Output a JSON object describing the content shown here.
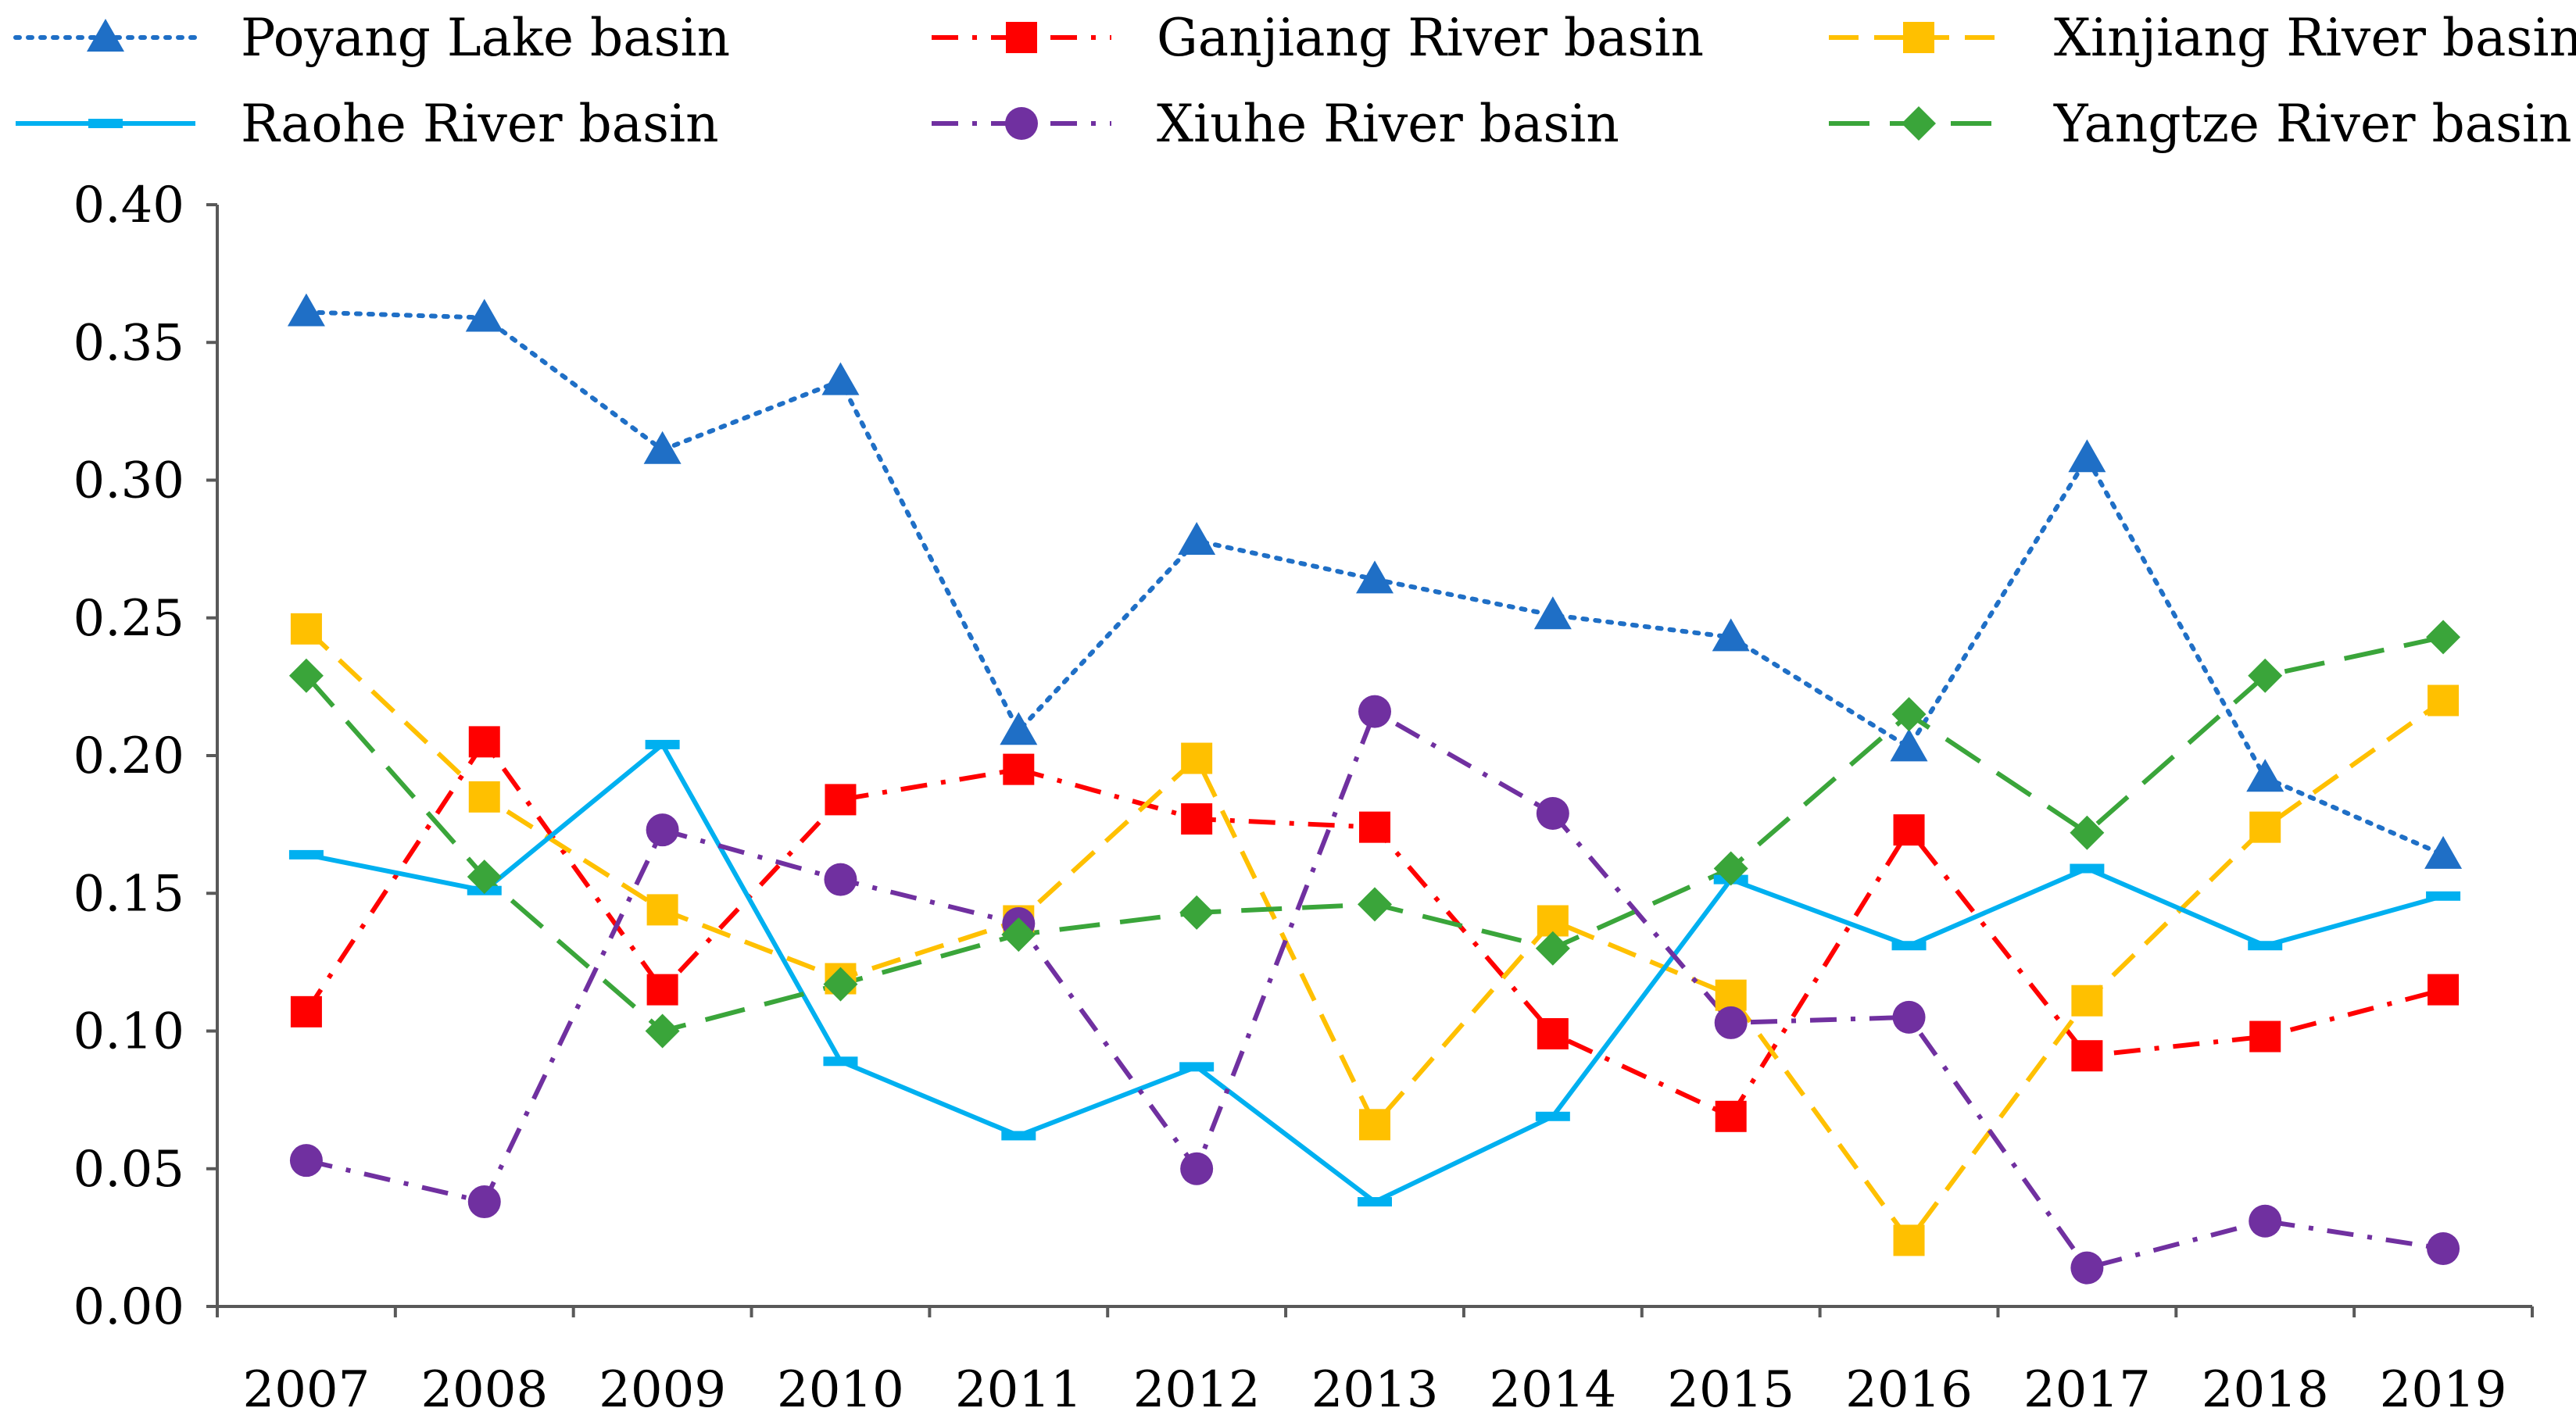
{
  "chart_data": {
    "type": "line",
    "title": "",
    "xlabel": "",
    "ylabel": "",
    "categories": [
      "2007",
      "2008",
      "2009",
      "2010",
      "2011",
      "2012",
      "2013",
      "2014",
      "2015",
      "2016",
      "2017",
      "2018",
      "2019"
    ],
    "ylim": [
      0,
      0.4
    ],
    "yticks": [
      "0.00",
      "0.05",
      "0.10",
      "0.15",
      "0.20",
      "0.25",
      "0.30",
      "0.35",
      "0.40"
    ],
    "grid": false,
    "legend_position": "top",
    "series": [
      {
        "name": "Poyang Lake basin",
        "color": "#1f6fc6",
        "dash": "dotted",
        "marker": "triangle",
        "values": [
          0.361,
          0.359,
          0.311,
          0.336,
          0.209,
          0.278,
          0.264,
          0.251,
          0.243,
          0.203,
          0.308,
          0.192,
          0.164
        ]
      },
      {
        "name": "Ganjiang River basin",
        "color": "#ff0000",
        "dash": "dashdot",
        "marker": "square",
        "values": [
          0.107,
          0.205,
          0.115,
          0.184,
          0.195,
          0.177,
          0.174,
          0.099,
          0.069,
          0.173,
          0.091,
          0.098,
          0.115
        ]
      },
      {
        "name": "Xinjiang River basin",
        "color": "#ffc000",
        "dash": "dashed",
        "marker": "square",
        "values": [
          0.246,
          0.185,
          0.144,
          0.119,
          0.14,
          0.199,
          0.066,
          0.14,
          0.113,
          0.024,
          0.111,
          0.174,
          0.22
        ]
      },
      {
        "name": "Raohe River basin",
        "color": "#00b0f0",
        "dash": "solid",
        "marker": "dash",
        "values": [
          0.164,
          0.151,
          0.204,
          0.089,
          0.062,
          0.087,
          0.038,
          0.069,
          0.155,
          0.131,
          0.159,
          0.131,
          0.149
        ]
      },
      {
        "name": "Xiuhe River basin",
        "color": "#7030a0",
        "dash": "dashdot",
        "marker": "circle",
        "values": [
          0.053,
          0.038,
          0.173,
          0.155,
          0.139,
          0.05,
          0.216,
          0.179,
          0.103,
          0.105,
          0.014,
          0.031,
          0.021
        ]
      },
      {
        "name": "Yangtze River basin",
        "color": "#3aa53a",
        "dash": "longdash",
        "marker": "diamond",
        "values": [
          0.229,
          0.156,
          0.1,
          0.117,
          0.135,
          0.143,
          0.146,
          0.13,
          0.159,
          0.215,
          0.172,
          0.229,
          0.243
        ]
      }
    ]
  }
}
